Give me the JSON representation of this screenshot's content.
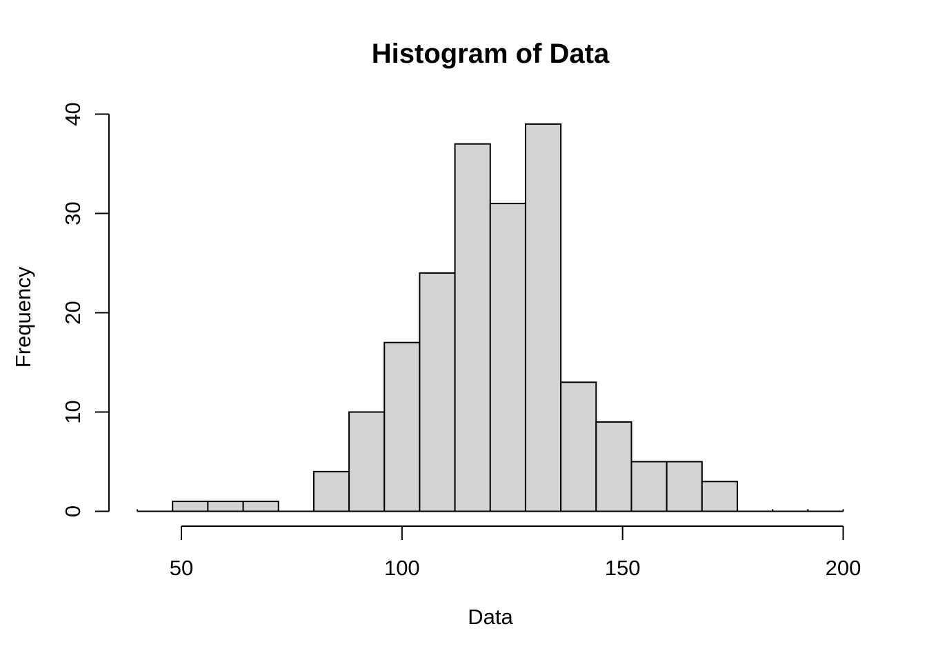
{
  "page": {
    "background": "#ffffff"
  },
  "chart_data": {
    "type": "bar",
    "subtype": "histogram",
    "title": "Histogram of Data",
    "xlabel": "Data",
    "ylabel": "Frequency",
    "bin_start": 40,
    "bin_width": 8,
    "bin_edges": [
      40,
      48,
      56,
      64,
      72,
      80,
      88,
      96,
      104,
      112,
      120,
      128,
      136,
      144,
      152,
      160,
      168,
      176,
      184,
      192,
      200
    ],
    "counts": [
      0,
      1,
      1,
      1,
      0,
      4,
      10,
      17,
      24,
      37,
      31,
      39,
      13,
      9,
      5,
      5,
      3,
      0,
      0,
      0
    ],
    "x_ticks": [
      50,
      100,
      150,
      200
    ],
    "y_ticks": [
      0,
      10,
      20,
      30,
      40
    ],
    "xlim": [
      40,
      200
    ],
    "ylim": [
      0,
      40
    ],
    "grid": false,
    "legend": false
  },
  "colors": {
    "bar_fill": "#d3d3d3",
    "bar_stroke": "#000000",
    "axis": "#000000",
    "text": "#000000"
  }
}
